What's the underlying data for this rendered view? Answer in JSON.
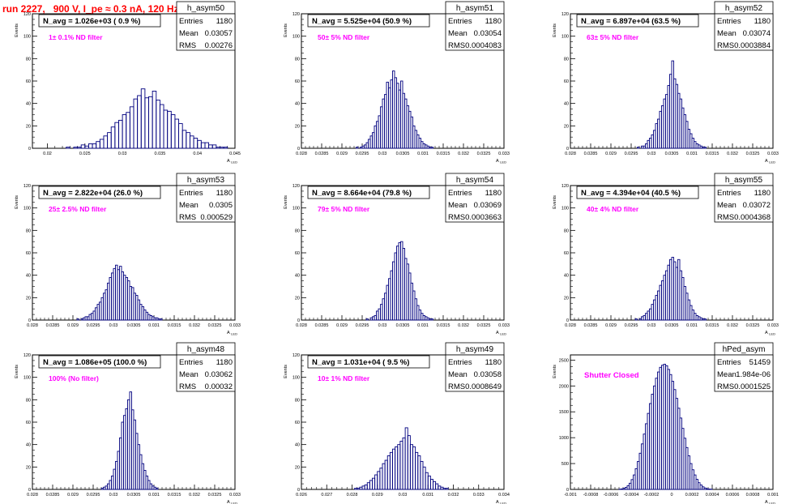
{
  "page": {
    "title": "run 2227,   900 V, I_pe ≈ 0.3 nA, 120 Hz",
    "ylabel": "Events",
    "xlabel": "A",
    "xlabel_sub": "LED",
    "colors": {
      "title": "#ff0000",
      "histogram": "#00007f",
      "annotation": "#ff00ff",
      "axis": "#000000"
    }
  },
  "chart_data": [
    {
      "type": "bar",
      "name": "h_asym50",
      "stats": {
        "Entries": "1180",
        "Mean": "0.03057",
        "RMS": "0.00276"
      },
      "navg": "N_avg = 1.026e+03 ( 0.9 %)",
      "note": "1± 0.1% ND filter",
      "xlim": [
        0.018,
        0.045
      ],
      "ylim": [
        0,
        120
      ],
      "xticks": [
        0.02,
        0.025,
        0.03,
        0.035,
        0.04,
        0.045
      ],
      "xticklabels": [
        "0.02",
        "0.025",
        "0.03",
        "0.035",
        "0.04",
        "0.045"
      ],
      "yticks": [
        0,
        20,
        40,
        60,
        80,
        100,
        120
      ],
      "bins": {
        "start": 0.0225,
        "width": 0.0005,
        "values": [
          1,
          0,
          1,
          1,
          3,
          2,
          4,
          4,
          6,
          8,
          11,
          14,
          19,
          23,
          25,
          30,
          32,
          37,
          44,
          47,
          53,
          45,
          46,
          51,
          43,
          39,
          34,
          33,
          30,
          26,
          22,
          16,
          14,
          11,
          9,
          7,
          5,
          5,
          3,
          3,
          1,
          1,
          1
        ]
      }
    },
    {
      "type": "bar",
      "name": "h_asym51",
      "stats": {
        "Entries": "1180",
        "Mean": "0.03054",
        "RMS": "0.0004083"
      },
      "navg": "N_avg = 5.525e+04 (50.9 %)",
      "note": "50± 5% ND filter",
      "xlim": [
        0.028,
        0.033
      ],
      "ylim": [
        0,
        120
      ],
      "xticks": [
        0.028,
        0.0285,
        0.029,
        0.0295,
        0.03,
        0.0305,
        0.031,
        0.0315,
        0.032,
        0.0325,
        0.033
      ],
      "xticklabels": [
        "0.028",
        "0.0285",
        "0.029",
        "0.0295",
        "0.03",
        "0.0305",
        "0.031",
        "0.0315",
        "0.032",
        "0.0325",
        "0.033"
      ],
      "yticks": [
        0,
        20,
        40,
        60,
        80,
        100,
        120
      ],
      "bins": {
        "start": 0.02935,
        "width": 5e-05,
        "values": [
          1,
          0,
          1,
          2,
          3,
          5,
          8,
          11,
          14,
          20,
          24,
          29,
          37,
          44,
          48,
          59,
          54,
          61,
          69,
          63,
          58,
          52,
          60,
          49,
          44,
          38,
          33,
          28,
          20,
          16,
          12,
          9,
          6,
          4,
          3,
          2,
          1,
          1
        ]
      }
    },
    {
      "type": "bar",
      "name": "h_asym52",
      "stats": {
        "Entries": "1180",
        "Mean": "0.03074",
        "RMS": "0.0003884"
      },
      "navg": "N_avg = 6.897e+04 (63.5 %)",
      "note": "63± 5% ND filter",
      "xlim": [
        0.028,
        0.033
      ],
      "ylim": [
        0,
        120
      ],
      "xticks": [
        0.028,
        0.0285,
        0.029,
        0.0295,
        0.03,
        0.0305,
        0.031,
        0.0315,
        0.032,
        0.0325,
        0.033
      ],
      "xticklabels": [
        "0.028",
        "0.0285",
        "0.029",
        "0.0295",
        "0.03",
        "0.0305",
        "0.031",
        "0.0315",
        "0.032",
        "0.0325",
        "0.033"
      ],
      "yticks": [
        0,
        20,
        40,
        60,
        80,
        100,
        120
      ],
      "bins": {
        "start": 0.02965,
        "width": 5e-05,
        "values": [
          1,
          0,
          2,
          2,
          4,
          7,
          9,
          12,
          16,
          22,
          26,
          33,
          38,
          44,
          48,
          56,
          66,
          78,
          62,
          57,
          49,
          44,
          36,
          30,
          24,
          17,
          13,
          9,
          6,
          4,
          3,
          2,
          1,
          1
        ]
      }
    },
    {
      "type": "bar",
      "name": "h_asym53",
      "stats": {
        "Entries": "1180",
        "Mean": "0.0305",
        "RMS": "0.000529"
      },
      "navg": "N_avg = 2.822e+04 (26.0 %)",
      "note": "25± 2.5% ND filter",
      "xlim": [
        0.028,
        0.033
      ],
      "ylim": [
        0,
        120
      ],
      "xticks": [
        0.028,
        0.0285,
        0.029,
        0.0295,
        0.03,
        0.0305,
        0.031,
        0.0315,
        0.032,
        0.0325,
        0.033
      ],
      "xticklabels": [
        "0.028",
        "0.0285",
        "0.029",
        "0.0295",
        "0.03",
        "0.0305",
        "0.031",
        "0.0315",
        "0.032",
        "0.0325",
        "0.033"
      ],
      "yticks": [
        0,
        20,
        40,
        60,
        80,
        100,
        120
      ],
      "bins": {
        "start": 0.0291,
        "width": 5e-05,
        "values": [
          1,
          0,
          1,
          2,
          3,
          3,
          5,
          6,
          8,
          11,
          14,
          16,
          20,
          24,
          27,
          33,
          38,
          42,
          46,
          49,
          45,
          48,
          43,
          40,
          38,
          35,
          30,
          29,
          24,
          22,
          18,
          14,
          12,
          9,
          7,
          5,
          4,
          3,
          2,
          2,
          1,
          1
        ]
      }
    },
    {
      "type": "bar",
      "name": "h_asym54",
      "stats": {
        "Entries": "1180",
        "Mean": "0.03069",
        "RMS": "0.0003663"
      },
      "navg": "N_avg = 8.664e+04 (79.8 %)",
      "note": "79± 5% ND filter",
      "xlim": [
        0.028,
        0.033
      ],
      "ylim": [
        0,
        120
      ],
      "xticks": [
        0.028,
        0.0285,
        0.029,
        0.0295,
        0.03,
        0.0305,
        0.031,
        0.0315,
        0.032,
        0.0325,
        0.033
      ],
      "xticklabels": [
        "0.028",
        "0.0285",
        "0.029",
        "0.0295",
        "0.03",
        "0.0305",
        "0.031",
        "0.0315",
        "0.032",
        "0.0325",
        "0.033"
      ],
      "yticks": [
        0,
        20,
        40,
        60,
        80,
        100,
        120
      ],
      "bins": {
        "start": 0.0296,
        "width": 5e-05,
        "values": [
          1,
          0,
          2,
          3,
          4,
          8,
          10,
          14,
          19,
          24,
          31,
          37,
          44,
          52,
          60,
          66,
          69,
          70,
          64,
          55,
          50,
          42,
          33,
          26,
          19,
          13,
          9,
          6,
          4,
          3,
          2,
          1,
          1
        ]
      }
    },
    {
      "type": "bar",
      "name": "h_asym55",
      "stats": {
        "Entries": "1180",
        "Mean": "0.03072",
        "RMS": "0.0004368"
      },
      "navg": "N_avg = 4.394e+04 (40.5 %)",
      "note": "40± 4% ND filter",
      "xlim": [
        0.028,
        0.033
      ],
      "ylim": [
        0,
        120
      ],
      "xticks": [
        0.028,
        0.0285,
        0.029,
        0.0295,
        0.03,
        0.0305,
        0.031,
        0.0315,
        0.032,
        0.0325,
        0.033
      ],
      "xticklabels": [
        "0.028",
        "0.0285",
        "0.029",
        "0.0295",
        "0.03",
        "0.0305",
        "0.031",
        "0.0315",
        "0.032",
        "0.0325",
        "0.033"
      ],
      "yticks": [
        0,
        20,
        40,
        60,
        80,
        100,
        120
      ],
      "bins": {
        "start": 0.0296,
        "width": 5e-05,
        "values": [
          1,
          0,
          1,
          3,
          4,
          6,
          8,
          10,
          14,
          18,
          22,
          26,
          31,
          35,
          40,
          44,
          49,
          54,
          56,
          52,
          47,
          54,
          44,
          38,
          30,
          24,
          18,
          13,
          9,
          6,
          4,
          3,
          2,
          1,
          1
        ]
      }
    },
    {
      "type": "bar",
      "name": "h_asym48",
      "stats": {
        "Entries": "1180",
        "Mean": "0.03062",
        "RMS": "0.00032"
      },
      "navg": "N_avg = 1.086e+05 (100.0 %)",
      "note": "100% (No filter)",
      "xlim": [
        0.028,
        0.033
      ],
      "ylim": [
        0,
        120
      ],
      "xticks": [
        0.028,
        0.0285,
        0.029,
        0.0295,
        0.03,
        0.0305,
        0.031,
        0.0315,
        0.032,
        0.0325,
        0.033
      ],
      "xticklabels": [
        "0.028",
        "0.0285",
        "0.029",
        "0.0295",
        "0.03",
        "0.0305",
        "0.031",
        "0.0315",
        "0.032",
        "0.0325",
        "0.033"
      ],
      "yticks": [
        0,
        20,
        40,
        60,
        80,
        100,
        120
      ],
      "bins": {
        "start": 0.0297,
        "width": 5e-05,
        "values": [
          1,
          2,
          3,
          5,
          8,
          12,
          18,
          25,
          34,
          46,
          60,
          66,
          72,
          80,
          87,
          71,
          62,
          50,
          40,
          31,
          23,
          17,
          12,
          8,
          5,
          3,
          2,
          1
        ]
      }
    },
    {
      "type": "bar",
      "name": "h_asym49",
      "stats": {
        "Entries": "1180",
        "Mean": "0.03058",
        "RMS": "0.0008649"
      },
      "navg": "N_avg = 1.031e+04 ( 9.5 %)",
      "note": "10± 1% ND filter",
      "xlim": [
        0.026,
        0.034
      ],
      "ylim": [
        0,
        120
      ],
      "xticks": [
        0.026,
        0.027,
        0.028,
        0.029,
        0.03,
        0.031,
        0.032,
        0.033,
        0.034
      ],
      "xticklabels": [
        "0.026",
        "0.027",
        "0.028",
        "0.029",
        "0.03",
        "0.031",
        "0.032",
        "0.033",
        "0.034"
      ],
      "yticks": [
        0,
        20,
        40,
        60,
        80,
        100,
        120
      ],
      "bins": {
        "start": 0.0281,
        "width": 0.0001,
        "values": [
          1,
          1,
          2,
          3,
          4,
          6,
          8,
          10,
          13,
          16,
          19,
          23,
          26,
          30,
          33,
          36,
          38,
          40,
          43,
          46,
          55,
          48,
          40,
          38,
          33,
          30,
          25,
          20,
          15,
          12,
          9,
          7,
          5,
          3,
          2,
          1,
          1
        ]
      }
    },
    {
      "type": "bar",
      "name": "hPed_asym",
      "stats": {
        "Entries": "51459",
        "Mean": "1.984e-06",
        "RMS": "0.0001525"
      },
      "navg": "",
      "note": "Shutter Closed",
      "xlim": [
        -0.001,
        0.001
      ],
      "ylim": [
        0,
        2600
      ],
      "xticks": [
        -0.001,
        -0.0008,
        -0.0006,
        -0.0004,
        -0.0002,
        0,
        0.0002,
        0.0004,
        0.0006,
        0.0008,
        0.001
      ],
      "xticklabels": [
        "-0.001",
        "-0.0008",
        "-0.0006",
        "-0.0004",
        "-0.0002",
        "0",
        "0.0002",
        "0.0004",
        "0.0006",
        "0.0008",
        "0.001"
      ],
      "yticks": [
        0,
        500,
        1000,
        1500,
        2000,
        2500
      ],
      "bins": {
        "start": -0.00052,
        "width": 2e-05,
        "values": [
          5,
          10,
          20,
          40,
          70,
          120,
          190,
          280,
          400,
          540,
          700,
          880,
          1070,
          1270,
          1470,
          1660,
          1840,
          2000,
          2150,
          2270,
          2360,
          2400,
          2420,
          2390,
          2320,
          2220,
          2090,
          1930,
          1760,
          1570,
          1380,
          1180,
          990,
          810,
          650,
          500,
          380,
          280,
          195,
          130,
          85,
          50,
          28,
          15,
          8,
          4
        ]
      }
    }
  ]
}
